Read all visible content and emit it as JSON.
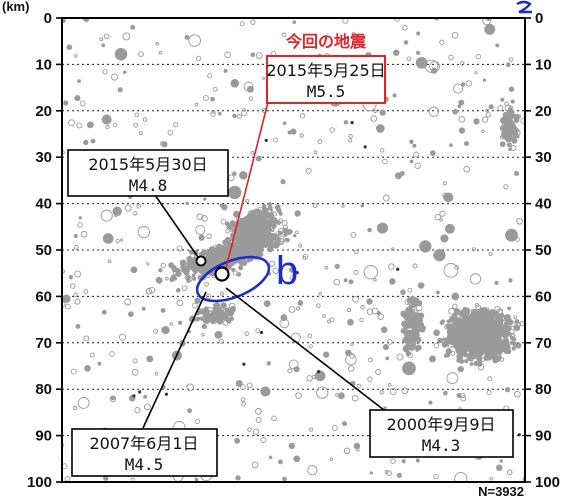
{
  "chart_data": {
    "type": "scatter",
    "y_unit": "(km)",
    "y_ticks": [
      "0",
      "10",
      "20",
      "30",
      "40",
      "50",
      "60",
      "70",
      "80",
      "90",
      "100"
    ],
    "ylim": [
      0,
      100
    ],
    "y_inverted": true,
    "grid": "horizontal dotted",
    "count_label": "N=3932",
    "region_label": "b",
    "headline": "今回の地震",
    "colors": {
      "background_points": "#9a9a9a",
      "highlight_box": "#e0242a",
      "region_ellipse": "#1a2bd6",
      "frame": "#000000"
    },
    "events": [
      {
        "id": "current",
        "date": "2015年5月25日",
        "magnitude": "M5.5",
        "depth": 55,
        "highlight": true
      },
      {
        "id": "may30",
        "date": "2015年5月30日",
        "magnitude": "M4.8",
        "depth": 52,
        "highlight": false
      },
      {
        "id": "jun2007",
        "date": "2007年6月1日",
        "magnitude": "M4.5",
        "depth": 60,
        "highlight": false
      },
      {
        "id": "sep2000",
        "date": "2000年9月9日",
        "magnitude": "M4.3",
        "depth": 63,
        "highlight": false
      }
    ]
  }
}
